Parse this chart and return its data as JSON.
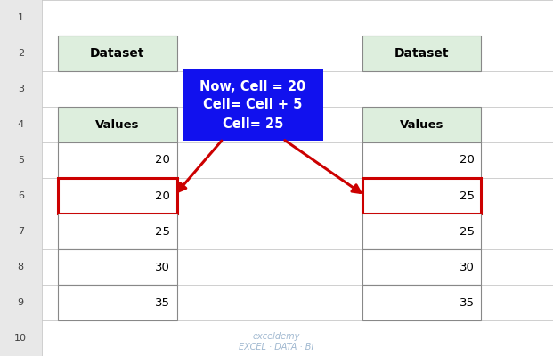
{
  "bg_color": "#ffffff",
  "grid_line_color": "#c8c8c8",
  "row_label_bg": "#e8e8e8",
  "row_label_color": "#404040",
  "left_table": {
    "header_text": "Dataset",
    "col_header": "Values",
    "values": [
      20,
      20,
      25,
      30,
      35
    ],
    "header_bg": "#ddeedd",
    "col_header_bg": "#ddeedd",
    "cell_bg": "#ffffff",
    "highlight_row_idx": 1,
    "highlight_color": "#cc0000"
  },
  "right_table": {
    "header_text": "Dataset",
    "col_header": "Values",
    "values": [
      20,
      25,
      25,
      30,
      35
    ],
    "header_bg": "#ddeedd",
    "col_header_bg": "#ddeedd",
    "cell_bg": "#ffffff",
    "highlight_row_idx": 1,
    "highlight_color": "#cc0000"
  },
  "box": {
    "text": "Now, Cell = 20\nCell= Cell + 5\nCell= 25",
    "bg_color": "#1111ee",
    "text_color": "#ffffff",
    "fontsize": 10.5
  },
  "arrow_color": "#cc0000",
  "watermark_text": "exceldemy\nEXCEL · DATA · BI",
  "watermark_color": "#a0b8d0"
}
